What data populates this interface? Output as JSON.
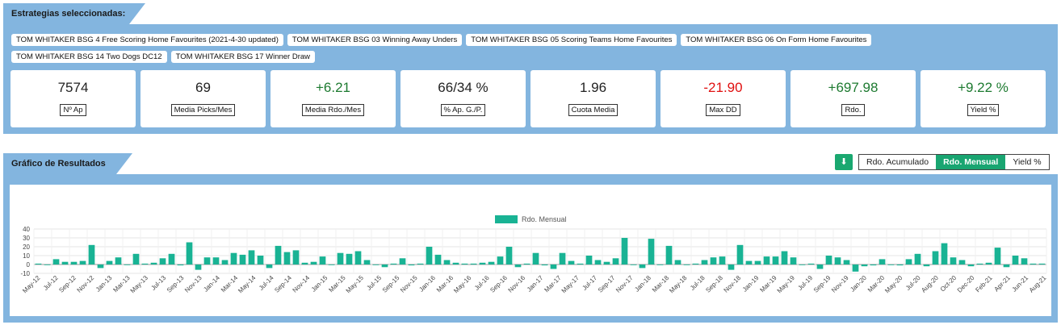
{
  "strategies": {
    "title": "Estrategias seleccionadas:",
    "tags": [
      "TOM WHITAKER BSG 4 Free Scoring Home Favourites (2021-4-30 updated)",
      "TOM WHITAKER BSG 03 Winning Away Unders",
      "TOM WHITAKER BSG 05 Scoring Teams Home Favourites",
      "TOM WHITAKER BSG 06 On Form Home Favourites",
      "TOM WHITAKER BSG 14 Two Dogs DC12",
      "TOM WHITAKER BSG 17 Winner Draw"
    ]
  },
  "stats": [
    {
      "value": "7574",
      "label": "Nº Ap",
      "tone": "neutral"
    },
    {
      "value": "69",
      "label": "Media Picks/Mes",
      "tone": "neutral"
    },
    {
      "value": "+6.21",
      "label": "Media Rdo./Mes",
      "tone": "pos"
    },
    {
      "value": "66/34 %",
      "label": "% Ap. G./P.",
      "tone": "neutral"
    },
    {
      "value": "1.96",
      "label": "Cuota Media",
      "tone": "neutral"
    },
    {
      "value": "-21.90",
      "label": "Max DD",
      "tone": "neg"
    },
    {
      "value": "+697.98",
      "label": "Rdo.",
      "tone": "pos"
    },
    {
      "value": "+9.22 %",
      "label": "Yield %",
      "tone": "pos"
    }
  ],
  "results": {
    "title": "Gráfico de Resultados",
    "download_icon": "download-icon",
    "toggle": [
      "Rdo. Acumulado",
      "Rdo. Mensual",
      "Yield %"
    ],
    "active_toggle": 1
  },
  "colors": {
    "panel": "#83b5df",
    "bar": "#19b394",
    "active": "#19a571",
    "positive": "#1d7a30",
    "negative": "#e01010"
  },
  "chart_data": {
    "type": "bar",
    "series": [
      {
        "name": "Rdo. Mensual",
        "values": [
          1,
          0,
          6,
          3,
          3,
          4,
          22,
          -4,
          4,
          8,
          0,
          12,
          1,
          2,
          7,
          12,
          -1,
          25,
          -6,
          8,
          8,
          5,
          13,
          11,
          16,
          10,
          -4,
          21,
          14,
          16,
          2,
          3,
          9,
          0,
          13,
          12,
          15,
          5,
          0,
          -3,
          1,
          7,
          -1,
          1,
          20,
          11,
          5,
          2,
          1,
          1,
          2,
          3,
          9,
          20,
          -3,
          1,
          13,
          -1,
          -5,
          13,
          4,
          1,
          10,
          5,
          3,
          7,
          30,
          0,
          -4,
          29,
          0,
          21,
          5,
          0,
          1,
          5,
          8,
          9,
          -6,
          22,
          4,
          4,
          9,
          9,
          15,
          8,
          0,
          1,
          -5,
          10,
          8,
          5,
          -8,
          -2,
          -1,
          6,
          0,
          -1,
          6,
          12,
          -2,
          15,
          24,
          8,
          5,
          -2,
          1,
          2,
          19,
          -3,
          10,
          7,
          1,
          1
        ]
      }
    ],
    "xticks": [
      "May-12",
      "Jul-12",
      "Sep-12",
      "Nov-12",
      "Jan-13",
      "Mar-13",
      "May-13",
      "Jul-13",
      "Sep-13",
      "Nov-13",
      "Jan-14",
      "Mar-14",
      "May-14",
      "Jul-14",
      "Sep-14",
      "Nov-14",
      "Jan-15",
      "Mar-15",
      "May-15",
      "Jul-15",
      "Sep-15",
      "Nov-15",
      "Jan-16",
      "Mar-16",
      "May-16",
      "Jul-16",
      "Sep-16",
      "Nov-16",
      "Jan-17",
      "Mar-17",
      "May-17",
      "Jul-17",
      "Sep-17",
      "Nov-17",
      "Jan-18",
      "Mar-18",
      "May-18",
      "Jul-18",
      "Sep-18",
      "Nov-18",
      "Jan-19",
      "Mar-19",
      "May-19",
      "Jul-19",
      "Sep-19",
      "Nov-19",
      "Jan-20",
      "Mar-20",
      "May-20",
      "Jul-20",
      "Aug-20",
      "Oct-20",
      "Dec-20",
      "Feb-21",
      "Apr-21",
      "Jun-21",
      "Aug-21"
    ],
    "yticks": [
      40,
      30,
      20,
      10,
      0,
      -10
    ],
    "ylim": [
      -10,
      40
    ],
    "legend": "top-center",
    "grid": true
  }
}
